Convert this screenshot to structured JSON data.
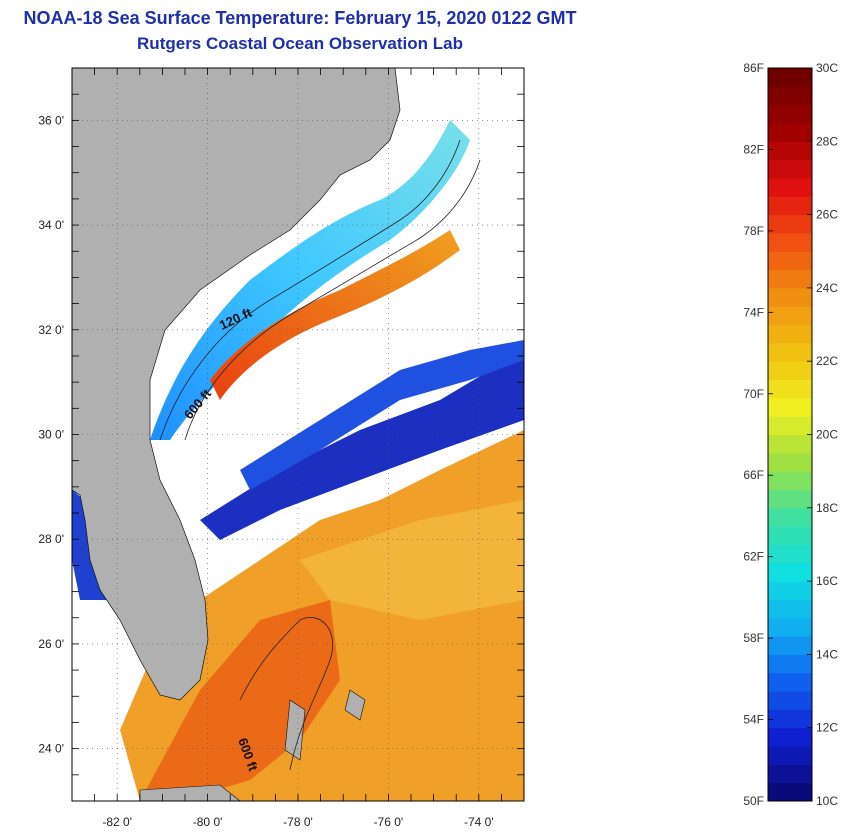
{
  "header": {
    "title": "NOAA-18 Sea Surface Temperature:  February 15, 2020 0122 GMT",
    "subtitle": "Rutgers Coastal Ocean Observation Lab"
  },
  "map": {
    "lat_labels": [
      "36 0'",
      "34 0'",
      "32 0'",
      "30 0'",
      "28 0'",
      "26 0'",
      "24 0'"
    ],
    "lon_labels": [
      "-82 0'",
      "-80 0'",
      "-78 0'",
      "-76 0'",
      "-74 0'"
    ],
    "contour_labels": [
      "120 ft",
      "600 ft",
      "600 ft"
    ]
  },
  "colorbar": {
    "fahrenheit_labels": [
      "86F",
      "82F",
      "78F",
      "74F",
      "70F",
      "66F",
      "62F",
      "58F",
      "54F",
      "50F"
    ],
    "celsius_labels": [
      "30C",
      "28C",
      "26C",
      "24C",
      "22C",
      "20C",
      "18C",
      "16C",
      "14C",
      "12C",
      "10C"
    ],
    "colors": [
      "#0a0a7a",
      "#1020d0",
      "#1060f0",
      "#10b0f0",
      "#10e0e0",
      "#40e0a0",
      "#a0e040",
      "#f0f020",
      "#f0c010",
      "#f09010",
      "#f05010",
      "#e01010",
      "#a00000",
      "#700000"
    ]
  }
}
